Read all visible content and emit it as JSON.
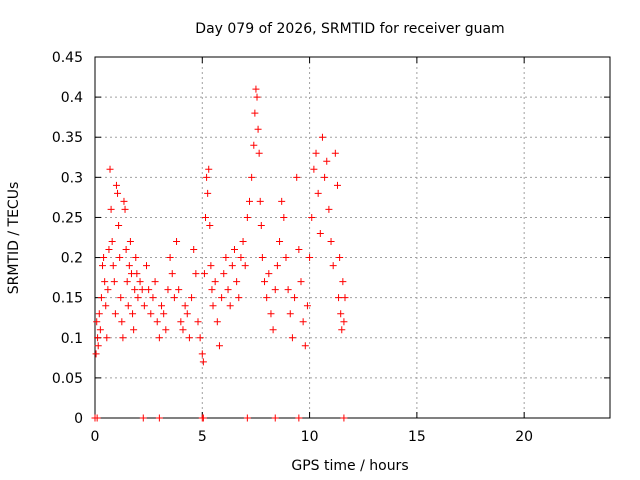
{
  "chart_data": {
    "type": "scatter",
    "title": "Day 079 of 2026, SRMTID for receiver guam",
    "xlabel": "GPS time / hours",
    "ylabel": "SRMTID / TECUs",
    "xlim": [
      0,
      24
    ],
    "ylim": [
      0,
      0.45
    ],
    "xticks": [
      0,
      5,
      10,
      15,
      20
    ],
    "yticks": [
      0,
      0.05,
      0.1,
      0.15,
      0.2,
      0.25,
      0.3,
      0.35,
      0.4,
      0.45
    ],
    "xtick_labels": [
      "0",
      "5",
      "10",
      "15",
      "20"
    ],
    "ytick_labels": [
      "0",
      "0.05",
      "0.1",
      "0.15",
      "0.2",
      "0.25",
      "0.3",
      "0.35",
      "0.4",
      "0.45"
    ],
    "grid": true,
    "marker": "+",
    "color": "#ff0000",
    "series": [
      {
        "points": [
          [
            0.05,
            0.08
          ],
          [
            0.08,
            0.12
          ],
          [
            0.12,
            0.1
          ],
          [
            0.15,
            0.09
          ],
          [
            0.2,
            0.13
          ],
          [
            0.25,
            0.11
          ],
          [
            0.3,
            0.15
          ],
          [
            0.35,
            0.19
          ],
          [
            0.4,
            0.2
          ],
          [
            0.45,
            0.17
          ],
          [
            0.5,
            0.14
          ],
          [
            0.55,
            0.1
          ],
          [
            0.6,
            0.16
          ],
          [
            0.65,
            0.21
          ],
          [
            0.7,
            0.31
          ],
          [
            0.75,
            0.26
          ],
          [
            0.8,
            0.22
          ],
          [
            0.85,
            0.19
          ],
          [
            0.9,
            0.17
          ],
          [
            0.95,
            0.13
          ],
          [
            1.0,
            0.29
          ],
          [
            1.05,
            0.28
          ],
          [
            1.1,
            0.24
          ],
          [
            1.15,
            0.2
          ],
          [
            1.2,
            0.15
          ],
          [
            1.25,
            0.12
          ],
          [
            1.3,
            0.1
          ],
          [
            1.35,
            0.27
          ],
          [
            1.4,
            0.26
          ],
          [
            1.45,
            0.21
          ],
          [
            1.5,
            0.17
          ],
          [
            1.55,
            0.14
          ],
          [
            1.6,
            0.19
          ],
          [
            1.65,
            0.22
          ],
          [
            1.7,
            0.18
          ],
          [
            1.75,
            0.13
          ],
          [
            1.8,
            0.11
          ],
          [
            1.85,
            0.16
          ],
          [
            1.9,
            0.2
          ],
          [
            1.95,
            0.18
          ],
          [
            2.0,
            0.15
          ],
          [
            2.1,
            0.17
          ],
          [
            2.2,
            0.16
          ],
          [
            2.3,
            0.14
          ],
          [
            2.4,
            0.19
          ],
          [
            2.5,
            0.16
          ],
          [
            2.6,
            0.13
          ],
          [
            2.7,
            0.15
          ],
          [
            2.8,
            0.17
          ],
          [
            2.9,
            0.12
          ],
          [
            3.0,
            0.1
          ],
          [
            3.1,
            0.14
          ],
          [
            3.2,
            0.13
          ],
          [
            3.3,
            0.11
          ],
          [
            3.4,
            0.16
          ],
          [
            3.5,
            0.2
          ],
          [
            3.6,
            0.18
          ],
          [
            3.7,
            0.15
          ],
          [
            3.8,
            0.22
          ],
          [
            3.9,
            0.16
          ],
          [
            4.0,
            0.12
          ],
          [
            4.1,
            0.11
          ],
          [
            4.2,
            0.14
          ],
          [
            4.3,
            0.13
          ],
          [
            4.4,
            0.1
          ],
          [
            4.5,
            0.15
          ],
          [
            4.6,
            0.21
          ],
          [
            4.7,
            0.18
          ],
          [
            4.8,
            0.12
          ],
          [
            4.9,
            0.1
          ],
          [
            5.0,
            0.08
          ],
          [
            5.05,
            0.07
          ],
          [
            5.1,
            0.18
          ],
          [
            5.15,
            0.25
          ],
          [
            5.2,
            0.3
          ],
          [
            5.25,
            0.28
          ],
          [
            5.3,
            0.31
          ],
          [
            5.35,
            0.24
          ],
          [
            5.4,
            0.19
          ],
          [
            5.45,
            0.16
          ],
          [
            5.5,
            0.14
          ],
          [
            5.6,
            0.17
          ],
          [
            5.7,
            0.12
          ],
          [
            5.8,
            0.09
          ],
          [
            5.9,
            0.15
          ],
          [
            6.0,
            0.18
          ],
          [
            6.1,
            0.2
          ],
          [
            6.2,
            0.16
          ],
          [
            6.3,
            0.14
          ],
          [
            6.4,
            0.19
          ],
          [
            6.5,
            0.21
          ],
          [
            6.6,
            0.17
          ],
          [
            6.7,
            0.15
          ],
          [
            6.8,
            0.2
          ],
          [
            6.9,
            0.22
          ],
          [
            7.0,
            0.19
          ],
          [
            7.1,
            0.25
          ],
          [
            7.2,
            0.27
          ],
          [
            7.3,
            0.3
          ],
          [
            7.4,
            0.34
          ],
          [
            7.45,
            0.38
          ],
          [
            7.5,
            0.41
          ],
          [
            7.55,
            0.4
          ],
          [
            7.6,
            0.36
          ],
          [
            7.65,
            0.33
          ],
          [
            7.7,
            0.27
          ],
          [
            7.75,
            0.24
          ],
          [
            7.8,
            0.2
          ],
          [
            7.9,
            0.17
          ],
          [
            8.0,
            0.15
          ],
          [
            8.1,
            0.18
          ],
          [
            8.2,
            0.13
          ],
          [
            8.3,
            0.11
          ],
          [
            8.4,
            0.16
          ],
          [
            8.5,
            0.19
          ],
          [
            8.6,
            0.22
          ],
          [
            8.7,
            0.27
          ],
          [
            8.8,
            0.25
          ],
          [
            8.9,
            0.2
          ],
          [
            9.0,
            0.16
          ],
          [
            9.1,
            0.13
          ],
          [
            9.2,
            0.1
          ],
          [
            9.3,
            0.15
          ],
          [
            9.4,
            0.3
          ],
          [
            9.5,
            0.21
          ],
          [
            9.6,
            0.17
          ],
          [
            9.7,
            0.12
          ],
          [
            9.8,
            0.09
          ],
          [
            9.9,
            0.14
          ],
          [
            10.0,
            0.2
          ],
          [
            10.1,
            0.25
          ],
          [
            10.2,
            0.31
          ],
          [
            10.3,
            0.33
          ],
          [
            10.4,
            0.28
          ],
          [
            10.5,
            0.23
          ],
          [
            10.6,
            0.35
          ],
          [
            10.7,
            0.3
          ],
          [
            10.8,
            0.32
          ],
          [
            10.9,
            0.26
          ],
          [
            11.0,
            0.22
          ],
          [
            11.1,
            0.19
          ],
          [
            11.2,
            0.33
          ],
          [
            11.3,
            0.29
          ],
          [
            11.35,
            0.15
          ],
          [
            11.4,
            0.2
          ],
          [
            11.45,
            0.13
          ],
          [
            11.5,
            0.11
          ],
          [
            11.55,
            0.17
          ],
          [
            11.6,
            0.12
          ],
          [
            11.65,
            0.15
          ]
        ]
      },
      {
        "points": [
          [
            0,
            0
          ],
          [
            0.1,
            0
          ],
          [
            2.25,
            0
          ],
          [
            3.0,
            0
          ],
          [
            5.0,
            0
          ],
          [
            5.05,
            0
          ],
          [
            7.1,
            0
          ],
          [
            8.4,
            0
          ],
          [
            9.5,
            0
          ],
          [
            11.6,
            0
          ]
        ]
      }
    ]
  }
}
